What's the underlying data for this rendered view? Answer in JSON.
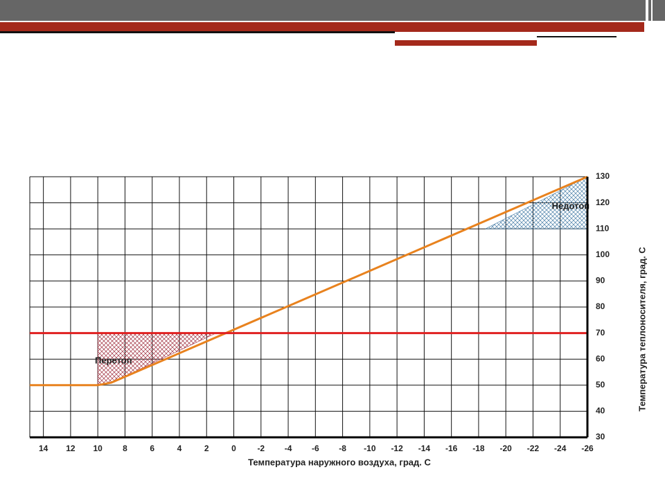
{
  "chart_data": {
    "type": "line",
    "x_label": "Температура наружного воздуха, град. С",
    "y_label": "Температура теплоносителя, град. С",
    "xlim": [
      15,
      -26
    ],
    "xticks": [
      14,
      12,
      10,
      8,
      6,
      4,
      2,
      0,
      -2,
      -4,
      -6,
      -8,
      -10,
      -12,
      -14,
      -16,
      -18,
      -20,
      -22,
      -24,
      -26
    ],
    "ylim": [
      30,
      130
    ],
    "yticks": [
      30,
      40,
      50,
      60,
      70,
      80,
      90,
      100,
      110,
      120,
      130
    ],
    "grid": true,
    "series": [
      {
        "color": "#e8821e",
        "x": [
          15,
          10,
          9,
          -26
        ],
        "values": [
          50,
          50,
          51,
          130
        ]
      },
      {
        "color": "#e02020",
        "x": [
          15,
          -26
        ],
        "values": [
          70,
          70
        ]
      }
    ],
    "regions": [
      {
        "label": "Перетоп",
        "color": "#a03040",
        "x": [
          10,
          10,
          1.3,
          9
        ],
        "y": [
          50,
          70,
          70,
          51
        ]
      },
      {
        "label": "Недотоп",
        "color": "#4a7fa8",
        "x": [
          -18.5,
          -26,
          -26
        ],
        "y": [
          110,
          110,
          130
        ]
      }
    ]
  }
}
